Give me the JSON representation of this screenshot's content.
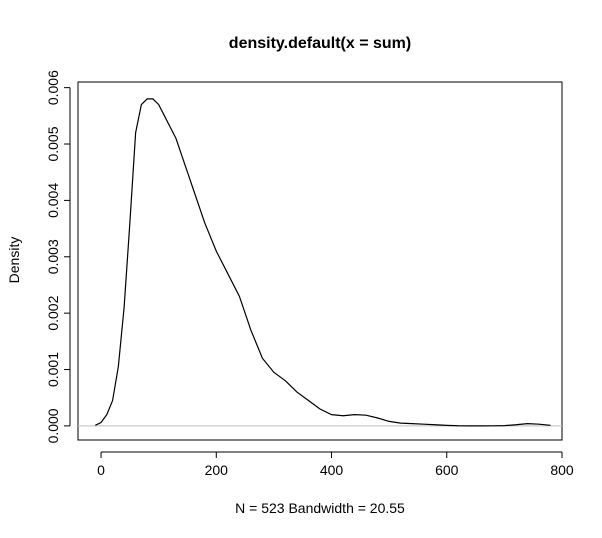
{
  "chart_data": {
    "type": "line",
    "title": "density.default(x = sum)",
    "xlabel": "N = 523   Bandwidth = 20.55",
    "ylabel": "Density",
    "xlim": [
      -40,
      800
    ],
    "ylim": [
      -0.00025,
      0.0061
    ],
    "x_ticks": [
      0,
      200,
      400,
      600,
      800
    ],
    "x_tick_labels": [
      "0",
      "200",
      "400",
      "600",
      "800"
    ],
    "y_ticks": [
      0.0,
      0.001,
      0.002,
      0.003,
      0.004,
      0.005,
      0.006
    ],
    "y_tick_labels": [
      "0.000",
      "0.001",
      "0.002",
      "0.003",
      "0.004",
      "0.005",
      "0.006"
    ],
    "baseline_color": "#bebebe",
    "grid": false,
    "series": [
      {
        "color": "#000000",
        "x": [
          -10,
          0,
          10,
          20,
          30,
          40,
          50,
          60,
          70,
          80,
          90,
          100,
          110,
          120,
          130,
          140,
          150,
          160,
          180,
          200,
          220,
          240,
          260,
          280,
          300,
          320,
          340,
          360,
          380,
          400,
          420,
          440,
          460,
          480,
          500,
          520,
          540,
          560,
          580,
          600,
          620,
          640,
          660,
          680,
          700,
          720,
          740,
          760,
          780
        ],
        "y": [
          1e-05,
          6e-05,
          0.0002,
          0.00045,
          0.00105,
          0.0021,
          0.0036,
          0.0052,
          0.0057,
          0.0058,
          0.0058,
          0.0057,
          0.0055,
          0.0053,
          0.0051,
          0.0048,
          0.0045,
          0.0042,
          0.0036,
          0.0031,
          0.0027,
          0.0023,
          0.0017,
          0.0012,
          0.00095,
          0.0008,
          0.0006,
          0.00045,
          0.0003,
          0.0002,
          0.00018,
          0.0002,
          0.00019,
          0.00014,
          8e-05,
          5e-05,
          4e-05,
          3e-05,
          2e-05,
          1e-05,
          3e-06,
          1e-06,
          1e-06,
          2e-06,
          5e-06,
          2e-05,
          4e-05,
          3e-05,
          1e-05
        ]
      }
    ]
  }
}
